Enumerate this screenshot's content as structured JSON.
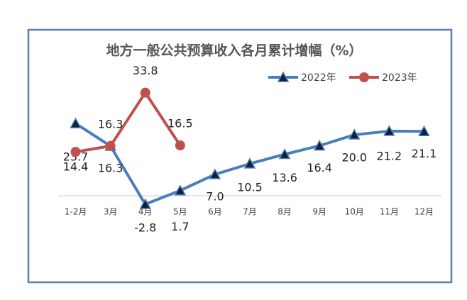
{
  "chart_data": {
    "type": "line",
    "title": "地方一般公共预算收入各月累计增幅（%）",
    "categories": [
      "1-2月",
      "3月",
      "4月",
      "5月",
      "6月",
      "7月",
      "8月",
      "9月",
      "10月",
      "11月",
      "12月"
    ],
    "series": [
      {
        "name": "2022年",
        "color": "#4a7ebb",
        "marker": "triangle",
        "values": [
          23.7,
          16.3,
          -2.8,
          1.7,
          7.0,
          10.5,
          13.6,
          16.4,
          20.0,
          21.2,
          21.1
        ],
        "value_labels": [
          "23.7",
          "16.3",
          "-2.8",
          "1.7",
          "7.0",
          "10.5",
          "13.6",
          "16.4",
          "20.0",
          "21.2",
          "21.1"
        ]
      },
      {
        "name": "2023年",
        "color": "#c0504d",
        "marker": "circle",
        "values": [
          14.4,
          16.3,
          33.8,
          16.5,
          null,
          null,
          null,
          null,
          null,
          null,
          null
        ],
        "value_labels": [
          "14.4",
          "16.3",
          "33.8",
          "16.5",
          null,
          null,
          null,
          null,
          null,
          null,
          null
        ]
      }
    ],
    "ylim": [
      -5,
      40
    ],
    "legend": "top-right"
  }
}
